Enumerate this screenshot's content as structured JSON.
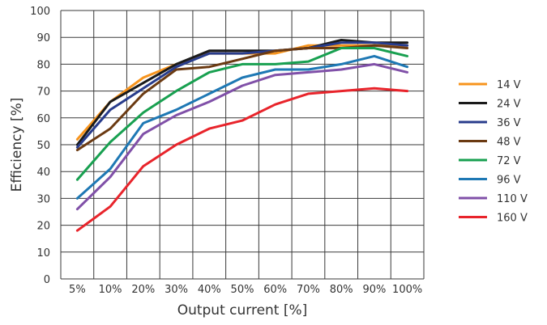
{
  "chart_data": {
    "type": "line",
    "title": "",
    "xlabel": "Output current [%]",
    "ylabel": "Efficiency [%]",
    "categories": [
      "5%",
      "10%",
      "20%",
      "30%",
      "40%",
      "50%",
      "60%",
      "70%",
      "80%",
      "90%",
      "100%"
    ],
    "ylim": [
      0,
      100
    ],
    "yticks": [
      0,
      10,
      20,
      30,
      40,
      50,
      60,
      70,
      80,
      90,
      100
    ],
    "grid": true,
    "legend_position": "right",
    "series": [
      {
        "name": "14 V",
        "color": "#F7941D",
        "values": [
          52,
          66,
          75,
          80,
          84,
          84,
          84,
          87,
          87,
          87,
          87
        ]
      },
      {
        "name": "24 V",
        "color": "#1A1A1A",
        "values": [
          50,
          66,
          73,
          80,
          85,
          85,
          85,
          86,
          89,
          88,
          88
        ]
      },
      {
        "name": "36 V",
        "color": "#283C8C",
        "values": [
          49,
          63,
          71,
          79,
          84,
          84,
          85,
          86,
          88,
          88,
          87
        ]
      },
      {
        "name": "48 V",
        "color": "#6B3A12",
        "values": [
          48,
          56,
          69,
          78,
          79,
          82,
          85,
          86,
          86,
          87,
          86
        ]
      },
      {
        "name": "72 V",
        "color": "#18A050",
        "values": [
          37,
          51,
          62,
          70,
          77,
          80,
          80,
          81,
          86,
          86,
          83
        ]
      },
      {
        "name": "96 V",
        "color": "#1E78B4",
        "values": [
          30,
          41,
          58,
          63,
          69,
          75,
          78,
          78,
          80,
          83,
          79
        ]
      },
      {
        "name": "110 V",
        "color": "#8050A8",
        "values": [
          26,
          38,
          54,
          61,
          66,
          72,
          76,
          77,
          78,
          80,
          77
        ]
      },
      {
        "name": "160 V",
        "color": "#E8242B",
        "values": [
          18,
          27,
          42,
          50,
          56,
          59,
          65,
          69,
          70,
          71,
          70
        ]
      }
    ]
  }
}
